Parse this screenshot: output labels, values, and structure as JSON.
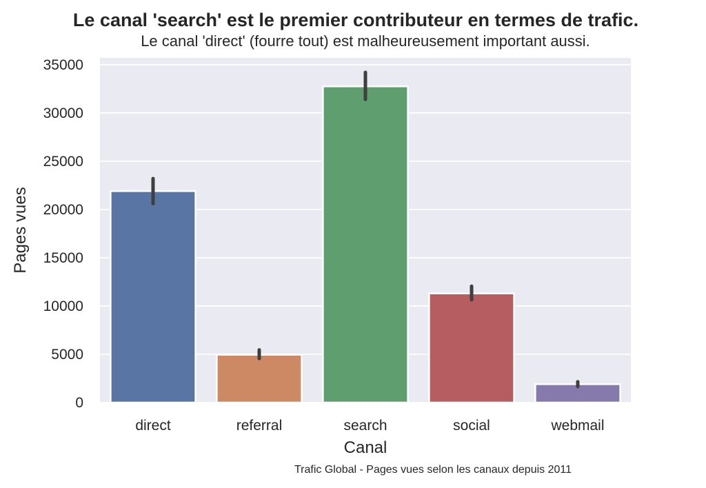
{
  "chart_data": {
    "type": "bar",
    "title": "Le canal 'search' est le premier contributeur en termes de trafic.",
    "subtitle": "Le canal 'direct' (fourre tout) est malheureusement important aussi.",
    "xlabel": "Canal",
    "ylabel": "Pages vues",
    "caption": "Trafic Global - Pages vues selon les canaux depuis 2011",
    "categories": [
      "direct",
      "referral",
      "search",
      "social",
      "webmail"
    ],
    "values": [
      21900,
      4950,
      32750,
      11300,
      1900
    ],
    "error_low": [
      20600,
      4550,
      31400,
      10650,
      1650
    ],
    "error_high": [
      23200,
      5450,
      34200,
      12050,
      2150
    ],
    "colors": [
      "#5875a4",
      "#cc8963",
      "#5f9e6e",
      "#b55d60",
      "#857aab"
    ],
    "ylim": [
      0,
      35700
    ],
    "yticks": [
      0,
      5000,
      10000,
      15000,
      20000,
      25000,
      30000,
      35000
    ],
    "grid": true,
    "background": "#eaeaf2"
  }
}
